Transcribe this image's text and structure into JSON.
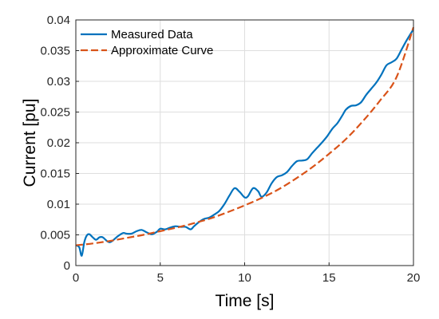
{
  "chart_data": {
    "type": "line",
    "xlabel": "Time [s]",
    "ylabel": "Current [pu]",
    "xlim": [
      0,
      20
    ],
    "ylim": [
      0,
      0.04
    ],
    "xticks": [
      0,
      5,
      10,
      15,
      20
    ],
    "yticks": [
      0,
      0.005,
      0.01,
      0.015,
      0.02,
      0.025,
      0.03,
      0.035,
      0.04
    ],
    "xtick_labels": [
      "0",
      "5",
      "10",
      "15",
      "20"
    ],
    "ytick_labels": [
      "0",
      "0.005",
      "0.01",
      "0.015",
      "0.02",
      "0.025",
      "0.03",
      "0.035",
      "0.04"
    ],
    "grid": true,
    "legend_position": "top-left",
    "series": [
      {
        "name": "Measured Data",
        "style": "solid",
        "color": "#0072BD",
        "x": [
          0,
          0.2,
          0.35,
          0.5,
          0.65,
          0.8,
          1.0,
          1.2,
          1.4,
          1.6,
          1.8,
          2.0,
          2.2,
          2.5,
          2.8,
          3.0,
          3.3,
          3.6,
          3.9,
          4.2,
          4.5,
          4.8,
          5.0,
          5.3,
          5.6,
          5.9,
          6.2,
          6.5,
          6.8,
          7.0,
          7.3,
          7.6,
          7.9,
          8.2,
          8.5,
          8.8,
          9.1,
          9.4,
          9.7,
          10.0,
          10.2,
          10.5,
          10.8,
          11.0,
          11.3,
          11.6,
          11.9,
          12.2,
          12.5,
          12.8,
          13.1,
          13.4,
          13.7,
          14.0,
          14.3,
          14.6,
          14.9,
          15.2,
          15.5,
          15.8,
          16.0,
          16.3,
          16.6,
          16.9,
          17.2,
          17.5,
          17.8,
          18.1,
          18.4,
          18.7,
          19.0,
          19.3,
          19.6,
          20.0
        ],
        "y": [
          0.0033,
          0.003,
          0.0016,
          0.0038,
          0.0049,
          0.0051,
          0.0046,
          0.0042,
          0.0046,
          0.0046,
          0.0041,
          0.0038,
          0.0041,
          0.0048,
          0.0053,
          0.0052,
          0.0052,
          0.0056,
          0.0058,
          0.0054,
          0.0051,
          0.0055,
          0.006,
          0.0059,
          0.0062,
          0.0064,
          0.0063,
          0.0063,
          0.0059,
          0.0064,
          0.0071,
          0.0076,
          0.0078,
          0.0083,
          0.0089,
          0.01,
          0.0114,
          0.0126,
          0.012,
          0.0111,
          0.0113,
          0.0126,
          0.0121,
          0.0112,
          0.0119,
          0.0134,
          0.0144,
          0.0147,
          0.0152,
          0.0162,
          0.017,
          0.0171,
          0.0173,
          0.0183,
          0.0192,
          0.0201,
          0.0211,
          0.0223,
          0.0232,
          0.0245,
          0.0254,
          0.026,
          0.0261,
          0.0266,
          0.0278,
          0.0288,
          0.0298,
          0.0311,
          0.0326,
          0.0331,
          0.0337,
          0.0352,
          0.0367,
          0.0385
        ]
      },
      {
        "name": "Approximate Curve",
        "style": "dashed",
        "color": "#D95319",
        "x": [
          0,
          1,
          2,
          3,
          4,
          5,
          6,
          7,
          8,
          9,
          10,
          11,
          12,
          13,
          14,
          15,
          16,
          17,
          18,
          19,
          20
        ],
        "y": [
          0.0033,
          0.0036,
          0.004,
          0.0045,
          0.005,
          0.0056,
          0.0062,
          0.0069,
          0.0077,
          0.0087,
          0.0098,
          0.011,
          0.0124,
          0.0141,
          0.016,
          0.0182,
          0.0206,
          0.0235,
          0.0268,
          0.0307,
          0.0388
        ]
      }
    ]
  }
}
